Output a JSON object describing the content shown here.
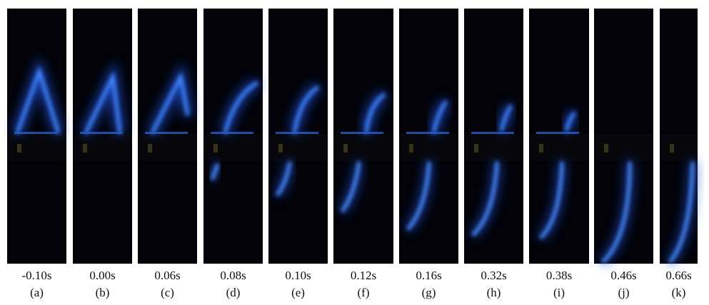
{
  "panels": [
    {
      "time": "-0.10s",
      "label": "(a)"
    },
    {
      "time": "0.00s",
      "label": "(b)"
    },
    {
      "time": "0.06s",
      "label": "(c)"
    },
    {
      "time": "0.08s",
      "label": "(d)"
    },
    {
      "time": "0.10s",
      "label": "(e)"
    },
    {
      "time": "0.12s",
      "label": "(f)"
    },
    {
      "time": "0.16s",
      "label": "(g)"
    },
    {
      "time": "0.32s",
      "label": "(h)"
    },
    {
      "time": "0.38s",
      "label": "(i)"
    },
    {
      "time": "0.46s",
      "label": "(j)"
    },
    {
      "time": "0.66s",
      "label": "(k)"
    }
  ]
}
